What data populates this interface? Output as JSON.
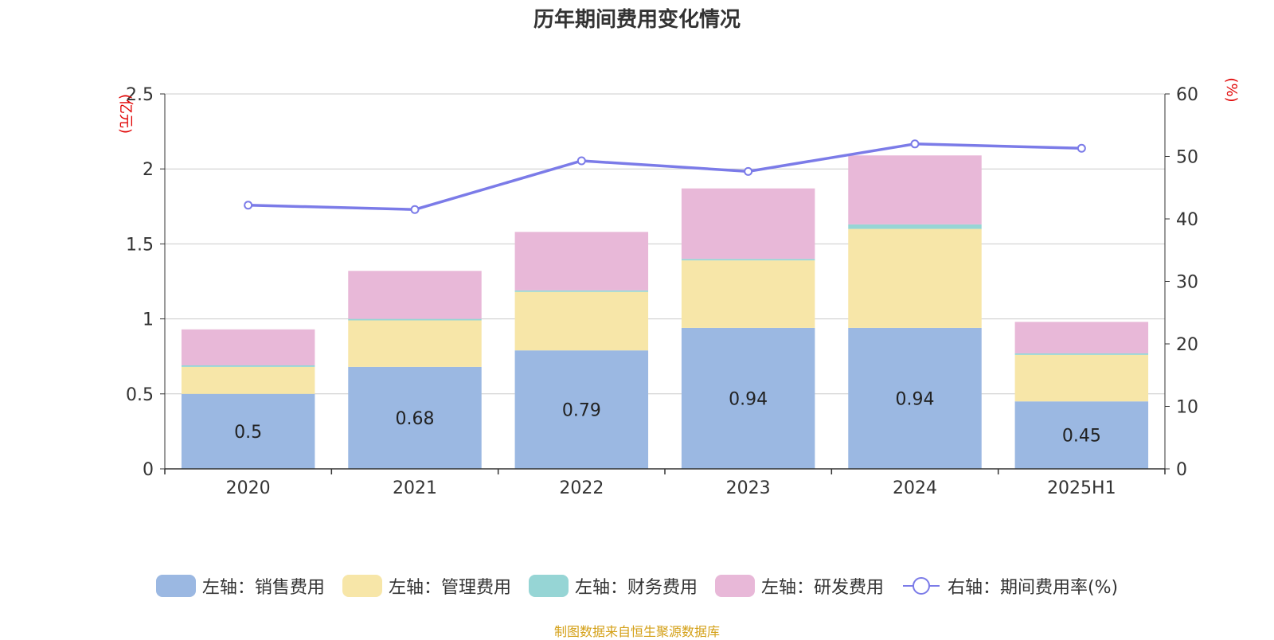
{
  "title": "历年期间费用变化情况",
  "source": "制图数据来自恒生聚源数据库",
  "colors": {
    "sales": "#9bb8e2",
    "admin": "#f7e6a8",
    "finance": "#96d5d5",
    "rnd": "#e8b8d8",
    "rate": "#7b7be8",
    "axis_unit": "#e00000"
  },
  "chart_data": {
    "type": "bar",
    "stacked": true,
    "categories": [
      "2020",
      "2021",
      "2022",
      "2023",
      "2024",
      "2025H1"
    ],
    "ylabel": "(亿元)",
    "ylabel_right": "(%)",
    "ylim": [
      0,
      2.5
    ],
    "ylim_right": [
      0,
      60
    ],
    "yticks": [
      "0",
      "0.5",
      "1",
      "1.5",
      "2",
      "2.5"
    ],
    "yticks_right": [
      "0",
      "10",
      "20",
      "30",
      "40",
      "50",
      "60"
    ],
    "grid": true,
    "legend_position": "bottom",
    "series": [
      {
        "name": "左轴：销售费用",
        "values": [
          0.5,
          0.68,
          0.79,
          0.94,
          0.94,
          0.45
        ],
        "labels": [
          "0.5",
          "0.68",
          "0.79",
          "0.94",
          "0.94",
          "0.45"
        ]
      },
      {
        "name": "左轴：管理费用",
        "values": [
          0.18,
          0.31,
          0.39,
          0.45,
          0.66,
          0.31
        ]
      },
      {
        "name": "左轴：财务费用",
        "values": [
          0.01,
          0.01,
          0.01,
          0.01,
          0.03,
          0.01
        ]
      },
      {
        "name": "左轴：研发费用",
        "values": [
          0.24,
          0.32,
          0.39,
          0.47,
          0.46,
          0.21
        ]
      }
    ],
    "line_series": {
      "name": "右轴：期间费用率(%)",
      "axis": "right",
      "values": [
        42.2,
        41.5,
        49.3,
        47.6,
        52.0,
        51.3
      ]
    }
  }
}
